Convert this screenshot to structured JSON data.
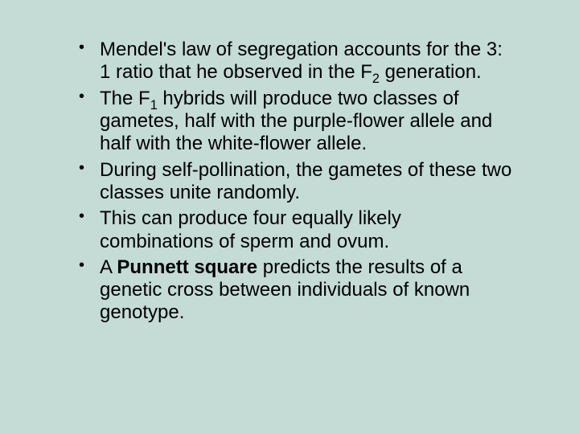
{
  "background_color": "#c4dbd6",
  "text_color": "#000000",
  "font_family": "Arial",
  "font_size_pt": 24,
  "bullets": [
    {
      "parts": [
        {
          "t": "Mendel's law of segregation accounts for the 3: 1 ratio that he observed in the F"
        },
        {
          "t": "2",
          "sub": true
        },
        {
          "t": " generation."
        }
      ]
    },
    {
      "parts": [
        {
          "t": "The F"
        },
        {
          "t": "1",
          "sub": true
        },
        {
          "t": " hybrids will produce two classes of gametes, half with the purple-flower allele and half with the white-flower allele."
        }
      ]
    },
    {
      "parts": [
        {
          "t": "During self-pollination, the gametes of these two classes unite randomly."
        }
      ]
    },
    {
      "parts": [
        {
          "t": "This can produce four equally likely combinations of sperm and ovum."
        }
      ]
    },
    {
      "parts": [
        {
          "t": "A "
        },
        {
          "t": "Punnett square",
          "bold": true
        },
        {
          "t": " predicts the results of a genetic cross between individuals of known genotype."
        }
      ]
    }
  ]
}
